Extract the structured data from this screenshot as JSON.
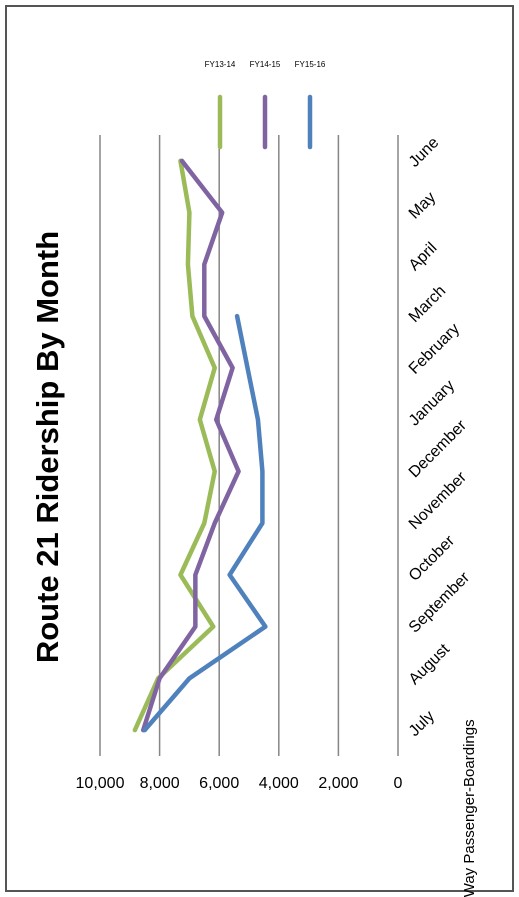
{
  "chart_data": {
    "type": "line",
    "title": "Route 21 Ridership By Month",
    "y_label": "One-Way Passenger-Boardings",
    "categories": [
      "July",
      "August",
      "September",
      "October",
      "November",
      "December",
      "January",
      "February",
      "March",
      "April",
      "May",
      "June"
    ],
    "series": [
      {
        "name": "FY13-14",
        "color": "#9bbb59",
        "values": [
          8830,
          8050,
          6200,
          7300,
          6500,
          6150,
          6650,
          6150,
          6900,
          7050,
          7000,
          7300
        ]
      },
      {
        "name": "FY14-15",
        "color": "#8064a2",
        "values": [
          8550,
          8000,
          6800,
          6800,
          6150,
          5350,
          6100,
          5550,
          6500,
          6500,
          5900,
          7250
        ]
      },
      {
        "name": "FY15-16",
        "color": "#4f81bd",
        "values": [
          8500,
          7000,
          4450,
          5650,
          4550,
          4550,
          4700,
          5050,
          5400,
          null,
          null,
          null
        ]
      }
    ],
    "ylim": [
      0,
      10000
    ],
    "yticks": [
      {
        "value": 0,
        "label": "0"
      },
      {
        "value": 2000,
        "label": "2,000"
      },
      {
        "value": 4000,
        "label": "4,000"
      },
      {
        "value": 6000,
        "label": "6,000"
      },
      {
        "value": 8000,
        "label": "8,000"
      },
      {
        "value": 10000,
        "label": "10,000"
      }
    ],
    "grid": true,
    "legend": "right"
  }
}
